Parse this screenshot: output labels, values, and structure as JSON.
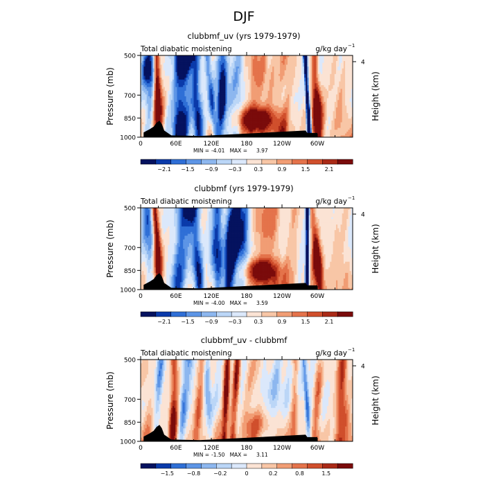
{
  "figure_title": "DJF",
  "chart_data": [
    {
      "type": "heatmap",
      "title": "clubbmf_uv (yrs 1979-1979)",
      "left_label": "Total diabatic moistening",
      "units": "g/kg day",
      "units_exp": "−1",
      "ylabel": "Pressure (mb)",
      "y2label": "Height (km)",
      "yticks": [
        500,
        700,
        850,
        1000
      ],
      "ylim": [
        1000,
        500
      ],
      "y2ticks": [
        "4"
      ],
      "xticks": [
        "0",
        "60E",
        "120E",
        "180",
        "120W",
        "60W"
      ],
      "xlim": [
        0,
        360
      ],
      "min_label": "MIN =",
      "min_value": "-4.01",
      "max_label": "MAX =",
      "max_value": "3.97",
      "colorbar_ticks": [
        "−2.1",
        "−1.5",
        "−0.9",
        "−0.3",
        "0.3",
        "0.9",
        "1.5",
        "2.1"
      ],
      "seed": 11,
      "bands": [
        {
          "lon": 15,
          "w": 10,
          "v": -1.4
        },
        {
          "lon": 28,
          "w": 5,
          "v": 2.4
        },
        {
          "lon": 70,
          "w": 14,
          "v": -2.6
        },
        {
          "lon": 95,
          "w": 9,
          "v": -1.8
        },
        {
          "lon": 120,
          "w": 6,
          "v": -2.0
        },
        {
          "lon": 138,
          "w": 8,
          "v": -2.4
        },
        {
          "lon": 160,
          "w": 10,
          "v": -1.2
        },
        {
          "lon": 205,
          "w": 25,
          "v": 1.1
        },
        {
          "lon": 245,
          "w": 14,
          "v": 0.7
        },
        {
          "lon": 283,
          "w": 3,
          "v": -3.8
        },
        {
          "lon": 298,
          "w": 6,
          "v": 2.2
        },
        {
          "lon": 335,
          "w": 14,
          "v": 0.5
        }
      ],
      "blobs": [
        {
          "lon": 195,
          "p": 860,
          "rw": 28,
          "rp": 80,
          "v": 2.8
        },
        {
          "lon": 30,
          "p": 760,
          "rw": 8,
          "rp": 150,
          "v": 2.3
        },
        {
          "lon": 300,
          "p": 800,
          "rw": 10,
          "rp": 130,
          "v": 2.0
        },
        {
          "lon": 10,
          "p": 560,
          "rw": 12,
          "rp": 80,
          "v": -1.6
        }
      ],
      "terrain": [
        {
          "lon": 5,
          "top": 960
        },
        {
          "lon": 15,
          "top": 935
        },
        {
          "lon": 22,
          "top": 915
        },
        {
          "lon": 27,
          "top": 885
        },
        {
          "lon": 32,
          "top": 870
        },
        {
          "lon": 36,
          "top": 895
        },
        {
          "lon": 40,
          "top": 945
        },
        {
          "lon": 52,
          "top": 985
        },
        {
          "lon": 100,
          "top": 990
        },
        {
          "lon": 280,
          "top": 945
        },
        {
          "lon": 283,
          "top": 965
        },
        {
          "lon": 300,
          "top": 965
        }
      ]
    },
    {
      "type": "heatmap",
      "title": "clubbmf (yrs 1979-1979)",
      "left_label": "Total diabatic moistening",
      "units": "g/kg day",
      "units_exp": "−1",
      "ylabel": "Pressure (mb)",
      "y2label": "Height (km)",
      "yticks": [
        500,
        700,
        850,
        1000
      ],
      "ylim": [
        1000,
        500
      ],
      "y2ticks": [
        "4"
      ],
      "xticks": [
        "0",
        "60E",
        "120E",
        "180",
        "120W",
        "60W"
      ],
      "xlim": [
        0,
        360
      ],
      "min_label": "MIN =",
      "min_value": "-4.00",
      "max_label": "MAX =",
      "max_value": "3.59",
      "colorbar_ticks": [
        "−2.1",
        "−1.5",
        "−0.9",
        "−0.3",
        "0.3",
        "0.9",
        "1.5",
        "2.1"
      ],
      "seed": 23,
      "bands": [
        {
          "lon": 15,
          "w": 10,
          "v": -1.4
        },
        {
          "lon": 28,
          "w": 5,
          "v": 2.2
        },
        {
          "lon": 70,
          "w": 14,
          "v": -2.2
        },
        {
          "lon": 95,
          "w": 9,
          "v": -1.9
        },
        {
          "lon": 130,
          "w": 10,
          "v": -2.2
        },
        {
          "lon": 155,
          "w": 10,
          "v": -3.0
        },
        {
          "lon": 175,
          "w": 9,
          "v": -1.8
        },
        {
          "lon": 215,
          "w": 22,
          "v": 0.9
        },
        {
          "lon": 255,
          "w": 12,
          "v": 0.5
        },
        {
          "lon": 283,
          "w": 3,
          "v": -3.8
        },
        {
          "lon": 298,
          "w": 6,
          "v": 2.0
        },
        {
          "lon": 335,
          "w": 14,
          "v": 0.4
        }
      ],
      "blobs": [
        {
          "lon": 205,
          "p": 850,
          "rw": 26,
          "rp": 80,
          "v": 2.5
        },
        {
          "lon": 30,
          "p": 770,
          "rw": 8,
          "rp": 150,
          "v": 2.2
        },
        {
          "lon": 300,
          "p": 790,
          "rw": 10,
          "rp": 130,
          "v": 1.9
        },
        {
          "lon": 160,
          "p": 620,
          "rw": 14,
          "rp": 120,
          "v": -1.4
        }
      ],
      "terrain": [
        {
          "lon": 5,
          "top": 960
        },
        {
          "lon": 15,
          "top": 935
        },
        {
          "lon": 22,
          "top": 915
        },
        {
          "lon": 27,
          "top": 885
        },
        {
          "lon": 32,
          "top": 870
        },
        {
          "lon": 36,
          "top": 895
        },
        {
          "lon": 40,
          "top": 945
        },
        {
          "lon": 52,
          "top": 985
        },
        {
          "lon": 100,
          "top": 990
        },
        {
          "lon": 280,
          "top": 945
        },
        {
          "lon": 283,
          "top": 965
        },
        {
          "lon": 300,
          "top": 965
        }
      ]
    },
    {
      "type": "heatmap",
      "title": "clubbmf_uv - clubbmf",
      "left_label": "Total diabatic moistening",
      "units": "g/kg day",
      "units_exp": "−1",
      "ylabel": "Pressure (mb)",
      "y2label": "Height (km)",
      "yticks": [
        500,
        700,
        850,
        1000
      ],
      "ylim": [
        1000,
        500
      ],
      "y2ticks": [
        "4"
      ],
      "xticks": [
        "0",
        "60E",
        "120E",
        "180",
        "120W",
        "60W"
      ],
      "xlim": [
        0,
        360
      ],
      "min_label": "MIN =",
      "min_value": "-1.50",
      "max_label": "MAX =",
      "max_value": "3.11",
      "colorbar_ticks": [
        "−1.5",
        "−0.8",
        "−0.2",
        "0",
        "0.2",
        "0.8",
        "1.5"
      ],
      "seed": 37,
      "bands": [
        {
          "lon": 10,
          "w": 8,
          "v": 0.5
        },
        {
          "lon": 30,
          "w": 6,
          "v": -0.7
        },
        {
          "lon": 55,
          "w": 6,
          "v": 1.4
        },
        {
          "lon": 75,
          "w": 8,
          "v": -1.3
        },
        {
          "lon": 100,
          "w": 7,
          "v": 1.2
        },
        {
          "lon": 115,
          "w": 6,
          "v": -0.9
        },
        {
          "lon": 145,
          "w": 5,
          "v": 2.6
        },
        {
          "lon": 160,
          "w": 6,
          "v": 1.5
        },
        {
          "lon": 190,
          "w": 10,
          "v": 0.7
        },
        {
          "lon": 230,
          "w": 12,
          "v": -0.3
        },
        {
          "lon": 262,
          "w": 6,
          "v": 1.0
        },
        {
          "lon": 282,
          "w": 4,
          "v": -1.3
        },
        {
          "lon": 300,
          "w": 7,
          "v": 0.8
        },
        {
          "lon": 340,
          "w": 10,
          "v": 1.1
        }
      ],
      "blobs": [
        {
          "lon": 60,
          "p": 830,
          "rw": 10,
          "rp": 150,
          "v": 1.2
        },
        {
          "lon": 200,
          "p": 860,
          "rw": 22,
          "rp": 90,
          "v": 0.9
        },
        {
          "lon": 225,
          "p": 640,
          "rw": 18,
          "rp": 90,
          "v": -0.5
        },
        {
          "lon": 345,
          "p": 790,
          "rw": 10,
          "rp": 140,
          "v": 1.0
        }
      ],
      "terrain": [
        {
          "lon": 5,
          "top": 960
        },
        {
          "lon": 15,
          "top": 935
        },
        {
          "lon": 22,
          "top": 915
        },
        {
          "lon": 27,
          "top": 885
        },
        {
          "lon": 32,
          "top": 870
        },
        {
          "lon": 36,
          "top": 895
        },
        {
          "lon": 40,
          "top": 945
        },
        {
          "lon": 52,
          "top": 985
        },
        {
          "lon": 100,
          "top": 990
        },
        {
          "lon": 280,
          "top": 945
        },
        {
          "lon": 283,
          "top": 965
        },
        {
          "lon": 300,
          "top": 965
        }
      ]
    }
  ],
  "colors": {
    "negative": [
      "#05125f",
      "#0a3aaa",
      "#2f6fd6",
      "#5d95e6",
      "#8db7ef",
      "#bbd6f7",
      "#dbe8fb"
    ],
    "positive": [
      "#fbe3d4",
      "#f8c6a6",
      "#f19d74",
      "#e4734b",
      "#d04f2c",
      "#aa2a17",
      "#7a0b0b"
    ],
    "terrain": "#000000"
  }
}
